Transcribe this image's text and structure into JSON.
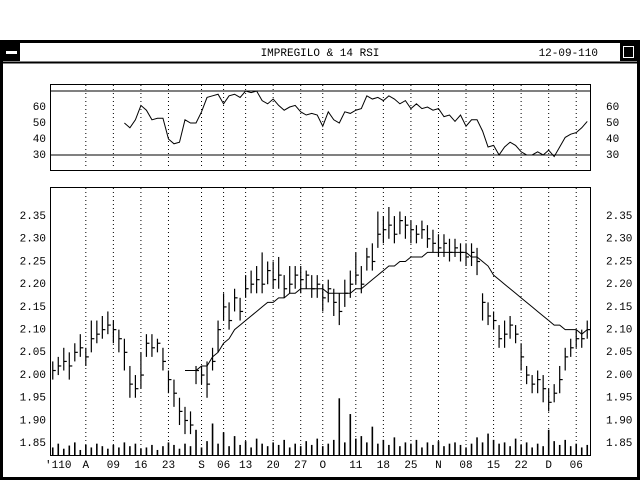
{
  "header": {
    "title": "IMPREGILO & 14 RSI",
    "date": "12-09-110"
  },
  "chart_data": [
    {
      "type": "line",
      "color": "#000000",
      "ylim": [
        20.6,
        74.4
      ],
      "yticks": [
        30,
        40,
        50,
        60
      ],
      "hlines": [
        70,
        30
      ],
      "values": [
        null,
        null,
        null,
        null,
        null,
        null,
        null,
        null,
        null,
        null,
        null,
        null,
        null,
        50,
        47,
        52,
        61,
        58,
        52,
        53,
        53,
        40,
        37,
        38,
        52,
        50,
        50,
        57,
        66,
        67,
        68,
        62,
        67,
        68,
        66,
        70,
        69,
        70,
        64,
        62,
        65,
        61,
        58,
        60,
        61,
        57,
        55,
        56,
        55,
        48,
        57,
        52,
        50,
        57,
        56,
        58,
        59,
        67,
        65,
        66,
        64,
        67,
        65,
        62,
        64,
        59,
        62,
        59,
        60,
        58,
        59,
        54,
        55,
        51,
        55,
        48,
        52,
        52,
        45,
        35,
        36,
        30,
        35,
        38,
        36,
        32,
        30,
        30,
        32,
        30,
        33,
        29,
        35,
        41,
        43,
        44,
        47,
        51
      ]
    },
    {
      "type": "hlc",
      "color": "#000000",
      "grid": true,
      "ylim": [
        1.824,
        2.414
      ],
      "yticks": [
        1.85,
        {
          "value": 1.9,
          "label": "1.90"
        },
        1.95,
        {
          "value": 2,
          "label": "2.00"
        },
        2.05,
        {
          "value": 2.1,
          "label": "2.10"
        },
        2.15,
        {
          "value": 2.2,
          "label": "2.20"
        },
        2.25,
        {
          "value": 2.3,
          "label": "2.30"
        },
        2.35
      ],
      "categories": [
        null,
        "'110",
        null,
        null,
        null,
        null,
        "A",
        null,
        null,
        null,
        null,
        "09",
        null,
        null,
        null,
        null,
        "16",
        null,
        null,
        null,
        null,
        "23",
        null,
        null,
        null,
        null,
        null,
        "S",
        null,
        null,
        null,
        "06",
        null,
        null,
        null,
        "13",
        null,
        null,
        null,
        null,
        "20",
        null,
        null,
        null,
        null,
        "27",
        null,
        null,
        null,
        "O",
        null,
        null,
        null,
        null,
        null,
        "11",
        null,
        null,
        null,
        null,
        "18",
        null,
        null,
        null,
        null,
        "25",
        null,
        null,
        null,
        null,
        "N",
        null,
        null,
        null,
        null,
        "08",
        null,
        null,
        null,
        null,
        "15",
        null,
        null,
        null,
        null,
        "22",
        null,
        null,
        null,
        null,
        "D",
        null,
        null,
        null,
        null,
        "06",
        null,
        null
      ],
      "high": [
        2.03,
        2.04,
        2.06,
        2.05,
        2.07,
        2.09,
        2.06,
        2.12,
        2.12,
        2.13,
        2.14,
        2.12,
        2.1,
        2.08,
        2.02,
        2.0,
        2.05,
        2.09,
        2.09,
        2.08,
        2.06,
        2.01,
        1.99,
        1.95,
        1.93,
        1.92,
        2.02,
        2.02,
        2.03,
        2.06,
        2.12,
        2.18,
        2.16,
        2.19,
        2.17,
        2.22,
        2.23,
        2.24,
        2.27,
        2.25,
        2.25,
        2.26,
        2.22,
        2.24,
        2.24,
        2.24,
        2.23,
        2.22,
        2.22,
        2.2,
        2.21,
        2.19,
        2.18,
        2.21,
        2.23,
        2.27,
        2.24,
        2.28,
        2.29,
        2.36,
        2.35,
        2.37,
        2.35,
        2.36,
        2.35,
        2.34,
        2.33,
        2.34,
        2.33,
        2.32,
        2.31,
        2.31,
        2.3,
        2.3,
        2.29,
        2.29,
        2.29,
        2.28,
        2.18,
        2.16,
        2.14,
        2.11,
        2.12,
        2.13,
        2.11,
        2.07,
        2.02,
        2.0,
        2.01,
        2.0,
        1.97,
        1.98,
        2.02,
        2.06,
        2.08,
        2.1,
        2.1,
        2.12
      ],
      "low": [
        1.99,
        2.0,
        2.01,
        1.99,
        2.03,
        2.04,
        2.02,
        2.05,
        2.07,
        2.08,
        2.09,
        2.07,
        2.05,
        2.01,
        1.95,
        1.95,
        1.97,
        2.04,
        2.04,
        2.05,
        2.01,
        1.96,
        1.93,
        1.89,
        1.87,
        1.87,
        1.98,
        1.98,
        1.95,
        2.01,
        2.05,
        2.12,
        2.1,
        2.14,
        2.12,
        2.17,
        2.18,
        2.18,
        2.18,
        2.2,
        2.19,
        2.19,
        2.17,
        2.18,
        2.19,
        2.18,
        2.19,
        2.17,
        2.17,
        2.14,
        2.16,
        2.13,
        2.11,
        2.15,
        2.17,
        2.2,
        2.18,
        2.23,
        2.23,
        2.28,
        2.29,
        2.3,
        2.29,
        2.31,
        2.3,
        2.29,
        2.29,
        2.3,
        2.28,
        2.27,
        2.26,
        2.26,
        2.25,
        2.26,
        2.25,
        2.24,
        2.24,
        2.22,
        2.12,
        2.11,
        2.1,
        2.06,
        2.06,
        2.08,
        2.07,
        2.01,
        1.98,
        1.96,
        1.96,
        1.94,
        1.92,
        1.94,
        1.96,
        2.01,
        2.04,
        2.06,
        2.06,
        2.08
      ],
      "close": [
        2.01,
        2.02,
        2.03,
        2.02,
        2.05,
        2.06,
        2.04,
        2.08,
        2.09,
        2.1,
        2.11,
        2.1,
        2.08,
        2.05,
        1.98,
        1.97,
        2.0,
        2.07,
        2.06,
        2.07,
        2.03,
        1.99,
        1.96,
        1.92,
        1.9,
        1.89,
        2.01,
        2.0,
        1.98,
        2.03,
        2.1,
        2.15,
        2.12,
        2.17,
        2.14,
        2.19,
        2.2,
        2.21,
        2.2,
        2.23,
        2.21,
        2.22,
        2.19,
        2.2,
        2.22,
        2.21,
        2.22,
        2.19,
        2.2,
        2.17,
        2.19,
        2.16,
        2.14,
        2.18,
        2.2,
        2.22,
        2.2,
        2.26,
        2.25,
        2.31,
        2.32,
        2.33,
        2.31,
        2.34,
        2.33,
        2.32,
        2.31,
        2.32,
        2.3,
        2.29,
        2.28,
        2.29,
        2.27,
        2.28,
        2.27,
        2.26,
        2.27,
        2.25,
        2.16,
        2.13,
        2.12,
        2.08,
        2.09,
        2.11,
        2.09,
        2.04,
        2.0,
        1.98,
        1.99,
        1.97,
        1.94,
        1.96,
        1.99,
        2.04,
        2.06,
        2.08,
        2.08,
        2.1
      ],
      "ma": [
        null,
        null,
        null,
        null,
        null,
        null,
        null,
        null,
        null,
        null,
        null,
        null,
        null,
        null,
        null,
        null,
        null,
        null,
        null,
        null,
        null,
        null,
        null,
        null,
        2.01,
        2.01,
        2.01,
        2.02,
        2.02,
        2.04,
        2.05,
        2.07,
        2.08,
        2.1,
        2.11,
        2.12,
        2.13,
        2.14,
        2.15,
        2.16,
        2.16,
        2.17,
        2.17,
        2.18,
        2.18,
        2.19,
        2.19,
        2.19,
        2.19,
        2.19,
        2.18,
        2.18,
        2.18,
        2.18,
        2.18,
        2.19,
        2.19,
        2.2,
        2.21,
        2.22,
        2.23,
        2.24,
        2.24,
        2.25,
        2.25,
        2.26,
        2.26,
        2.26,
        2.27,
        2.27,
        2.27,
        2.27,
        2.27,
        2.27,
        2.27,
        2.27,
        2.26,
        2.26,
        2.25,
        2.24,
        2.22,
        2.21,
        2.2,
        2.19,
        2.18,
        2.17,
        2.16,
        2.15,
        2.14,
        2.13,
        2.12,
        2.11,
        2.11,
        2.1,
        2.1,
        2.1,
        2.09,
        2.1
      ],
      "vlim": [
        0,
        100
      ],
      "volume": [
        12,
        18,
        10,
        15,
        20,
        8,
        16,
        12,
        18,
        14,
        10,
        16,
        12,
        20,
        14,
        18,
        10,
        12,
        16,
        8,
        14,
        20,
        16,
        10,
        18,
        14,
        40,
        12,
        22,
        50,
        18,
        36,
        14,
        30,
        16,
        22,
        12,
        26,
        18,
        14,
        20,
        16,
        24,
        12,
        18,
        14,
        22,
        16,
        26,
        14,
        18,
        24,
        90,
        20,
        65,
        26,
        30,
        20,
        45,
        18,
        24,
        16,
        28,
        14,
        20,
        18,
        24,
        12,
        20,
        16,
        22,
        14,
        18,
        20,
        16,
        12,
        18,
        28,
        20,
        34,
        24,
        18,
        20,
        14,
        26,
        16,
        20,
        12,
        18,
        14,
        40,
        22,
        16,
        24,
        14,
        18,
        12,
        16
      ]
    }
  ]
}
